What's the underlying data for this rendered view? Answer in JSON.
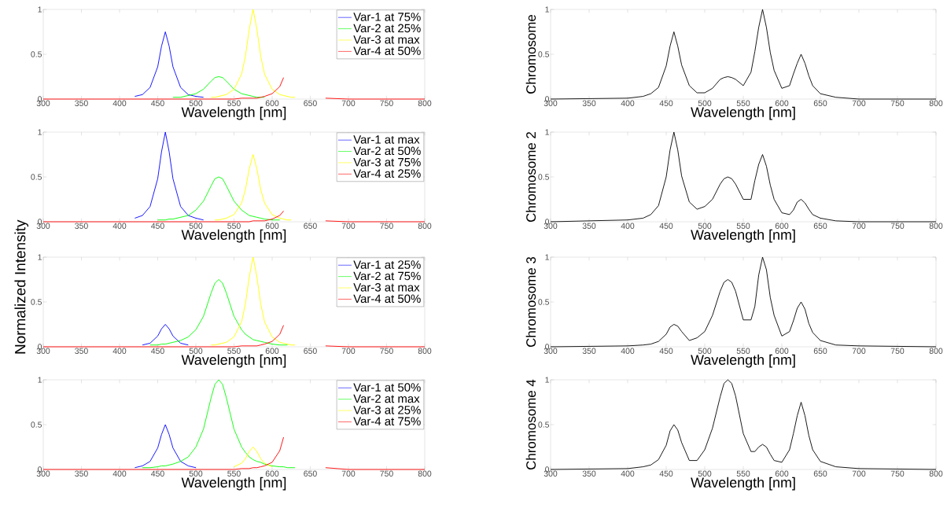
{
  "chart_data": [
    {
      "type": "line",
      "x": [
        300,
        400,
        420,
        430,
        440,
        450,
        455,
        460,
        465,
        470,
        480,
        490,
        500,
        510,
        520,
        525,
        530,
        535,
        540,
        550,
        560,
        565,
        570,
        575,
        580,
        585,
        590,
        600,
        610,
        615,
        620,
        625,
        630,
        635,
        640,
        650,
        670,
        700,
        800
      ],
      "xlim": [
        300,
        800
      ],
      "ylim": [
        0,
        1
      ],
      "xticks": [
        300,
        350,
        400,
        450,
        500,
        550,
        600,
        650,
        700,
        750,
        800
      ],
      "yticks": [
        0,
        0.5,
        1
      ],
      "xlabel": "Wavelength [nm]",
      "legend": "top right",
      "series": [
        {
          "name": "Var-1 at 75%",
          "color": "#0000ff",
          "values": [
            null,
            null,
            0.03,
            0.05,
            0.13,
            0.36,
            0.59,
            0.75,
            0.59,
            0.36,
            0.13,
            0.05,
            0.03,
            0.02,
            null,
            null,
            null,
            null,
            null,
            null,
            null,
            null,
            null,
            null,
            null,
            null,
            null,
            null,
            null,
            null,
            null,
            null,
            null,
            null,
            null,
            null,
            null,
            null,
            null
          ]
        },
        {
          "name": "Var-2 at 25%",
          "color": "#00ff00",
          "values": [
            null,
            null,
            null,
            null,
            null,
            null,
            null,
            null,
            null,
            0.02,
            0.02,
            0.04,
            0.06,
            0.11,
            0.2,
            0.24,
            0.25,
            0.24,
            0.2,
            0.11,
            0.06,
            0.05,
            0.04,
            0.03,
            0.02,
            0.02,
            0.02,
            null,
            null,
            null,
            null,
            null,
            null,
            null,
            null,
            null,
            null,
            null,
            null
          ]
        },
        {
          "name": "Var-3 at max",
          "color": "#ffff00",
          "values": [
            null,
            null,
            null,
            null,
            null,
            null,
            null,
            null,
            null,
            null,
            null,
            null,
            null,
            null,
            0.02,
            0.02,
            0.03,
            0.04,
            0.05,
            0.11,
            0.28,
            0.48,
            0.78,
            1,
            0.78,
            0.48,
            0.28,
            0.11,
            0.05,
            0.04,
            0.03,
            0.02,
            0.02,
            null,
            null,
            null,
            null,
            null,
            null
          ]
        },
        {
          "name": "Var-4 at 50%",
          "color": "#ff0000",
          "values": [
            0,
            0,
            0,
            0,
            0,
            0,
            0,
            0,
            0,
            0,
            0,
            0,
            0,
            0,
            0,
            0,
            0,
            0,
            0,
            0,
            0.01,
            0.01,
            0.01,
            0.01,
            0.01,
            0.02,
            0.03,
            0.06,
            0.14,
            0.24,
            null,
            null,
            null,
            null,
            null,
            null,
            0.01,
            0,
            0
          ]
        }
      ]
    },
    {
      "type": "line",
      "x": [
        300,
        400,
        420,
        430,
        440,
        450,
        455,
        460,
        465,
        470,
        480,
        490,
        500,
        510,
        520,
        525,
        530,
        535,
        540,
        550,
        560,
        565,
        570,
        575,
        580,
        585,
        590,
        600,
        610,
        615,
        620,
        625,
        630,
        635,
        640,
        650,
        670,
        700,
        800
      ],
      "xlim": [
        300,
        800
      ],
      "ylim": [
        0,
        1
      ],
      "xticks": [
        300,
        350,
        400,
        450,
        500,
        550,
        600,
        650,
        700,
        750,
        800
      ],
      "yticks": [
        0,
        0.5,
        1
      ],
      "xlabel": "Wavelength [nm]",
      "ylabel": "Chromosome",
      "series": [
        {
          "color": "#000000",
          "values": [
            0,
            0.01,
            0.03,
            0.06,
            0.13,
            0.37,
            0.59,
            0.75,
            0.59,
            0.38,
            0.15,
            0.07,
            0.07,
            0.12,
            0.22,
            0.24,
            0.25,
            0.24,
            0.22,
            0.15,
            0.3,
            0.53,
            0.8,
            1,
            0.8,
            0.52,
            0.32,
            0.12,
            0.15,
            0.28,
            0.4,
            0.5,
            0.4,
            0.26,
            0.15,
            0.06,
            0.02,
            0,
            0
          ]
        }
      ]
    },
    {
      "type": "line",
      "x": [
        300,
        400,
        420,
        430,
        440,
        450,
        455,
        460,
        465,
        470,
        480,
        490,
        500,
        510,
        520,
        525,
        530,
        535,
        540,
        550,
        560,
        565,
        570,
        575,
        580,
        585,
        590,
        600,
        610,
        615,
        620,
        625,
        630,
        635,
        640,
        650,
        670,
        700,
        800
      ],
      "xlim": [
        300,
        800
      ],
      "ylim": [
        0,
        1
      ],
      "xticks": [
        300,
        350,
        400,
        450,
        500,
        550,
        600,
        650,
        700,
        750,
        800
      ],
      "yticks": [
        0,
        0.5,
        1
      ],
      "xlabel": "Wavelength [nm]",
      "ylabel": "Normalized Intensity",
      "legend": "top right",
      "series": [
        {
          "name": "Var-1 at max",
          "color": "#0000ff",
          "values": [
            null,
            null,
            0.04,
            0.07,
            0.17,
            0.48,
            0.78,
            1,
            0.78,
            0.48,
            0.17,
            0.07,
            0.04,
            0.02,
            null,
            null,
            null,
            null,
            null,
            null,
            null,
            null,
            null,
            null,
            null,
            null,
            null,
            null,
            null,
            null,
            null,
            null,
            null,
            null,
            null,
            null,
            null,
            null,
            null
          ]
        },
        {
          "name": "Var-2 at 50%",
          "color": "#00ff00",
          "values": [
            null,
            null,
            null,
            null,
            null,
            0.02,
            0.02,
            0.02,
            0.03,
            0.03,
            0.05,
            0.07,
            0.13,
            0.23,
            0.4,
            0.48,
            0.5,
            0.48,
            0.4,
            0.23,
            0.13,
            0.1,
            0.07,
            0.06,
            0.05,
            0.04,
            0.03,
            0.02,
            0.02,
            null,
            null,
            null,
            null,
            null,
            null,
            null,
            null,
            null,
            null
          ]
        },
        {
          "name": "Var-3 at 75%",
          "color": "#ffff00",
          "values": [
            null,
            null,
            null,
            null,
            null,
            null,
            null,
            null,
            null,
            null,
            null,
            null,
            null,
            null,
            null,
            0.02,
            0.02,
            0.03,
            0.04,
            0.08,
            0.21,
            0.36,
            0.59,
            0.75,
            0.59,
            0.36,
            0.21,
            0.08,
            0.04,
            0.03,
            0.02,
            0.02,
            null,
            null,
            null,
            null,
            null,
            null,
            null
          ]
        },
        {
          "name": "Var-4 at 25%",
          "color": "#ff0000",
          "values": [
            0,
            0,
            0,
            0,
            0,
            0,
            0,
            0,
            0,
            0,
            0,
            0,
            0,
            0,
            0,
            0,
            0,
            0,
            0,
            0,
            0,
            0,
            0,
            0.01,
            0.01,
            0.01,
            0.01,
            0.03,
            0.07,
            0.12,
            null,
            null,
            null,
            null,
            null,
            null,
            0.01,
            0,
            0
          ]
        }
      ]
    },
    {
      "type": "line",
      "x": [
        300,
        400,
        420,
        430,
        440,
        450,
        455,
        460,
        465,
        470,
        480,
        490,
        500,
        510,
        520,
        525,
        530,
        535,
        540,
        550,
        560,
        565,
        570,
        575,
        580,
        585,
        590,
        600,
        610,
        615,
        620,
        625,
        630,
        635,
        640,
        650,
        670,
        700,
        800
      ],
      "xlim": [
        300,
        800
      ],
      "ylim": [
        0,
        1
      ],
      "xticks": [
        300,
        350,
        400,
        450,
        500,
        550,
        600,
        650,
        700,
        750,
        800
      ],
      "yticks": [
        0,
        0.5,
        1
      ],
      "xlabel": "Wavelength [nm]",
      "ylabel": "Chromosome 2",
      "series": [
        {
          "color": "#000000",
          "values": [
            0,
            0.02,
            0.04,
            0.08,
            0.18,
            0.5,
            0.8,
            1,
            0.8,
            0.51,
            0.22,
            0.14,
            0.17,
            0.25,
            0.42,
            0.48,
            0.5,
            0.48,
            0.42,
            0.25,
            0.25,
            0.46,
            0.64,
            0.75,
            0.62,
            0.41,
            0.25,
            0.1,
            0.08,
            0.13,
            0.22,
            0.25,
            0.21,
            0.14,
            0.08,
            0.04,
            0.01,
            0,
            0
          ]
        }
      ]
    },
    {
      "type": "line",
      "x": [
        300,
        400,
        420,
        430,
        440,
        450,
        455,
        460,
        465,
        470,
        480,
        490,
        500,
        510,
        520,
        525,
        530,
        535,
        540,
        550,
        560,
        565,
        570,
        575,
        580,
        585,
        590,
        600,
        610,
        615,
        620,
        625,
        630,
        635,
        640,
        650,
        670,
        700,
        800
      ],
      "xlim": [
        300,
        800
      ],
      "ylim": [
        0,
        1
      ],
      "xticks": [
        300,
        350,
        400,
        450,
        500,
        550,
        600,
        650,
        700,
        750,
        800
      ],
      "yticks": [
        0,
        0.5,
        1
      ],
      "xlabel": "Wavelength [nm]",
      "legend": "top right",
      "series": [
        {
          "name": "Var-1 at 25%",
          "color": "#0000ff",
          "values": [
            null,
            null,
            null,
            0.02,
            0.04,
            0.12,
            0.2,
            0.25,
            0.2,
            0.12,
            0.04,
            0.02,
            null,
            null,
            null,
            null,
            null,
            null,
            null,
            null,
            null,
            null,
            null,
            null,
            null,
            null,
            null,
            null,
            null,
            null,
            null,
            null,
            null,
            null,
            null,
            null,
            null,
            null,
            null
          ]
        },
        {
          "name": "Var-2 at 75%",
          "color": "#00ff00",
          "values": [
            null,
            null,
            null,
            null,
            0.02,
            0.02,
            0.03,
            0.03,
            0.04,
            0.05,
            0.07,
            0.11,
            0.19,
            0.34,
            0.6,
            0.71,
            0.75,
            0.71,
            0.6,
            0.34,
            0.19,
            0.14,
            0.11,
            0.08,
            0.07,
            0.06,
            0.05,
            0.03,
            0.02,
            0.02,
            0.02,
            null,
            null,
            null,
            null,
            null,
            null,
            null,
            null
          ]
        },
        {
          "name": "Var-3 at max",
          "color": "#ffff00",
          "values": [
            null,
            null,
            null,
            null,
            null,
            null,
            null,
            null,
            null,
            null,
            null,
            null,
            null,
            null,
            0.02,
            0.02,
            0.03,
            0.04,
            0.05,
            0.11,
            0.28,
            0.48,
            0.78,
            1,
            0.78,
            0.48,
            0.28,
            0.11,
            0.05,
            0.04,
            0.03,
            0.02,
            0.02,
            null,
            null,
            null,
            null,
            null,
            null
          ]
        },
        {
          "name": "Var-4 at 50%",
          "color": "#ff0000",
          "values": [
            0,
            0,
            0,
            0,
            0,
            0,
            0,
            0,
            0,
            0,
            0,
            0,
            0,
            0,
            0,
            0,
            0,
            0,
            0,
            0,
            0.01,
            0.01,
            0.01,
            0.01,
            0.01,
            0.02,
            0.03,
            0.06,
            0.14,
            0.24,
            null,
            null,
            null,
            null,
            null,
            null,
            0.01,
            0,
            0
          ]
        }
      ]
    },
    {
      "type": "line",
      "x": [
        300,
        400,
        420,
        430,
        440,
        450,
        455,
        460,
        465,
        470,
        480,
        490,
        500,
        510,
        520,
        525,
        530,
        535,
        540,
        550,
        560,
        565,
        570,
        575,
        580,
        585,
        590,
        600,
        610,
        615,
        620,
        625,
        630,
        635,
        640,
        650,
        670,
        700,
        800
      ],
      "xlim": [
        300,
        800
      ],
      "ylim": [
        0,
        1
      ],
      "xticks": [
        300,
        350,
        400,
        450,
        500,
        550,
        600,
        650,
        700,
        750,
        800
      ],
      "yticks": [
        0,
        0.5,
        1
      ],
      "xlabel": "Wavelength [nm]",
      "ylabel": "Chromosome 3",
      "series": [
        {
          "color": "#000000",
          "values": [
            0,
            0.01,
            0.02,
            0.03,
            0.06,
            0.14,
            0.22,
            0.25,
            0.23,
            0.17,
            0.07,
            0.1,
            0.17,
            0.35,
            0.62,
            0.72,
            0.75,
            0.72,
            0.62,
            0.3,
            0.3,
            0.45,
            0.8,
            1,
            0.86,
            0.55,
            0.35,
            0.12,
            0.17,
            0.29,
            0.43,
            0.5,
            0.42,
            0.26,
            0.16,
            0.07,
            0.02,
            0.01,
            0
          ]
        }
      ]
    },
    {
      "type": "line",
      "x": [
        300,
        400,
        420,
        430,
        440,
        450,
        455,
        460,
        465,
        470,
        480,
        490,
        500,
        510,
        520,
        525,
        530,
        535,
        540,
        550,
        560,
        565,
        570,
        575,
        580,
        585,
        590,
        600,
        610,
        615,
        620,
        625,
        630,
        635,
        640,
        650,
        670,
        700,
        800
      ],
      "xlim": [
        300,
        800
      ],
      "ylim": [
        0,
        1
      ],
      "xticks": [
        300,
        350,
        400,
        450,
        500,
        550,
        600,
        650,
        700,
        750,
        800
      ],
      "yticks": [
        0,
        0.5,
        1
      ],
      "xlabel": "Wavelength [nm]",
      "legend": "top right",
      "series": [
        {
          "name": "Var-1 at 50%",
          "color": "#0000ff",
          "values": [
            null,
            null,
            0.02,
            0.04,
            0.09,
            0.24,
            0.39,
            0.5,
            0.39,
            0.24,
            0.09,
            0.04,
            0.02,
            null,
            null,
            null,
            null,
            null,
            null,
            null,
            null,
            null,
            null,
            null,
            null,
            null,
            null,
            null,
            null,
            null,
            null,
            null,
            null,
            null,
            null,
            null,
            null,
            null,
            null
          ]
        },
        {
          "name": "Var-2 at max",
          "color": "#00ff00",
          "values": [
            null,
            null,
            null,
            0.02,
            0.02,
            0.03,
            0.04,
            0.04,
            0.05,
            0.06,
            0.09,
            0.14,
            0.25,
            0.45,
            0.8,
            0.95,
            1,
            0.95,
            0.8,
            0.45,
            0.25,
            0.19,
            0.14,
            0.11,
            0.09,
            0.08,
            0.06,
            0.04,
            0.03,
            0.03,
            0.02,
            0.02,
            0.02,
            null,
            null,
            null,
            null,
            null,
            null
          ]
        },
        {
          "name": "Var-3 at 25%",
          "color": "#ffff00",
          "values": [
            null,
            null,
            null,
            null,
            null,
            null,
            null,
            null,
            null,
            null,
            null,
            null,
            null,
            null,
            null,
            null,
            null,
            null,
            null,
            0.03,
            0.07,
            0.12,
            0.2,
            0.25,
            0.2,
            0.12,
            0.07,
            0.03,
            null,
            null,
            null,
            null,
            null,
            null,
            null,
            null,
            null,
            null,
            null
          ]
        },
        {
          "name": "Var-4 at 75%",
          "color": "#ff0000",
          "values": [
            0,
            0,
            0,
            0,
            0,
            0,
            0,
            0,
            0,
            0,
            0,
            0,
            0,
            0,
            0,
            0,
            0,
            0,
            0,
            0,
            0.01,
            0.01,
            0.01,
            0.02,
            0.02,
            0.03,
            0.04,
            0.08,
            0.21,
            0.36,
            null,
            null,
            null,
            null,
            null,
            null,
            0.02,
            0,
            0
          ]
        }
      ]
    },
    {
      "type": "line",
      "x": [
        300,
        400,
        420,
        430,
        440,
        450,
        455,
        460,
        465,
        470,
        480,
        490,
        500,
        510,
        520,
        525,
        530,
        535,
        540,
        550,
        560,
        565,
        570,
        575,
        580,
        585,
        590,
        600,
        610,
        615,
        620,
        625,
        630,
        635,
        640,
        650,
        670,
        700,
        800
      ],
      "xlim": [
        300,
        800
      ],
      "ylim": [
        0,
        1
      ],
      "xticks": [
        300,
        350,
        400,
        450,
        500,
        550,
        600,
        650,
        700,
        750,
        800
      ],
      "yticks": [
        0,
        0.5,
        1
      ],
      "xlabel": "Wavelength [nm]",
      "ylabel": "Chromosome 4",
      "series": [
        {
          "color": "#000000",
          "values": [
            0,
            0.01,
            0.03,
            0.05,
            0.11,
            0.27,
            0.43,
            0.5,
            0.44,
            0.3,
            0.1,
            0.1,
            0.22,
            0.46,
            0.81,
            0.96,
            1,
            0.96,
            0.82,
            0.4,
            0.2,
            0.2,
            0.25,
            0.28,
            0.25,
            0.17,
            0.1,
            0.08,
            0.22,
            0.4,
            0.6,
            0.75,
            0.6,
            0.38,
            0.22,
            0.09,
            0.03,
            0.01,
            0
          ]
        }
      ]
    }
  ]
}
